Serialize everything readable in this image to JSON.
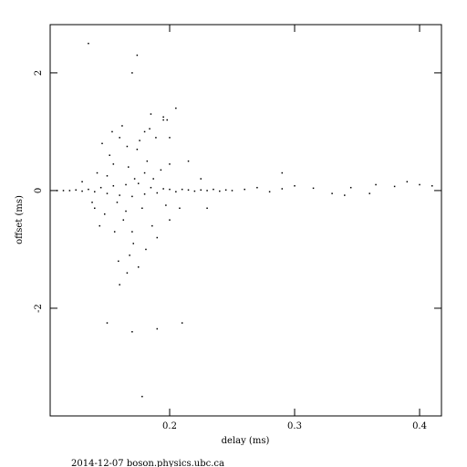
{
  "chart_data": {
    "type": "scatter",
    "xlabel": "delay (ms)",
    "ylabel": "offset (ms)",
    "footer": "2014-12-07 boson.physics.ubc.ca",
    "xlim": [
      0.1044,
      0.4175
    ],
    "ylim": [
      -3.83,
      2.82
    ],
    "xticks": [
      0.2,
      0.3,
      0.4
    ],
    "yticks": [
      -2,
      0,
      2
    ],
    "color": "#000000",
    "x": [
      0.12,
      0.125,
      0.13,
      0.135,
      0.14,
      0.145,
      0.15,
      0.155,
      0.16,
      0.165,
      0.17,
      0.175,
      0.18,
      0.185,
      0.19,
      0.195,
      0.2,
      0.205,
      0.21,
      0.215,
      0.22,
      0.225,
      0.23,
      0.235,
      0.24,
      0.245,
      0.25,
      0.115,
      0.11,
      0.142,
      0.148,
      0.152,
      0.156,
      0.16,
      0.163,
      0.167,
      0.171,
      0.174,
      0.178,
      0.182,
      0.186,
      0.189,
      0.193,
      0.197,
      0.15,
      0.158,
      0.165,
      0.172,
      0.18,
      0.144,
      0.146,
      0.162,
      0.168,
      0.176,
      0.184,
      0.19,
      0.2,
      0.208,
      0.215,
      0.14,
      0.154,
      0.159,
      0.166,
      0.17,
      0.181,
      0.187,
      0.195,
      0.2,
      0.185,
      0.198,
      0.166,
      0.175,
      0.13,
      0.138,
      0.225,
      0.23,
      0.16,
      0.18,
      0.155,
      0.135,
      0.174,
      0.17,
      0.205,
      0.195,
      0.15,
      0.17,
      0.178,
      0.19,
      0.21,
      0.2,
      0.27,
      0.28,
      0.29,
      0.3,
      0.315,
      0.33,
      0.34,
      0.345,
      0.36,
      0.365,
      0.38,
      0.39,
      0.4,
      0.41,
      0.29,
      0.26
    ],
    "y": [
      0,
      0.01,
      -0.01,
      0.02,
      -0.02,
      0.05,
      -0.05,
      0.08,
      -0.08,
      0.1,
      -0.1,
      0.12,
      -0.06,
      0.05,
      -0.04,
      0.03,
      0.02,
      -0.02,
      0.02,
      0.01,
      -0.01,
      0.01,
      0,
      0.02,
      -0.01,
      0.01,
      0,
      0,
      0,
      0.3,
      -0.4,
      0.6,
      -0.7,
      0.9,
      -0.5,
      0.4,
      -0.9,
      0.7,
      -0.3,
      0.5,
      -0.6,
      0.9,
      0.35,
      -0.25,
      0.25,
      -0.2,
      -0.35,
      0.2,
      0.3,
      -0.6,
      0.8,
      1.1,
      -1.1,
      0.85,
      1.05,
      -0.8,
      0.45,
      -0.3,
      0.5,
      -0.3,
      1.0,
      -1.2,
      0.75,
      -0.7,
      -1.0,
      0.2,
      1.2,
      -0.5,
      1.3,
      1.2,
      -1.4,
      -1.3,
      0.15,
      -0.2,
      0.2,
      -0.3,
      -1.6,
      1.0,
      0.45,
      2.5,
      2.3,
      2.0,
      1.4,
      1.25,
      -2.25,
      -2.4,
      -3.5,
      -2.35,
      -2.25,
      0.9,
      0.05,
      -0.02,
      0.03,
      0.08,
      0.04,
      -0.05,
      -0.08,
      0.05,
      -0.05,
      0.1,
      0.07,
      0.15,
      0.1,
      0.08,
      0.3,
      0.02
    ]
  }
}
